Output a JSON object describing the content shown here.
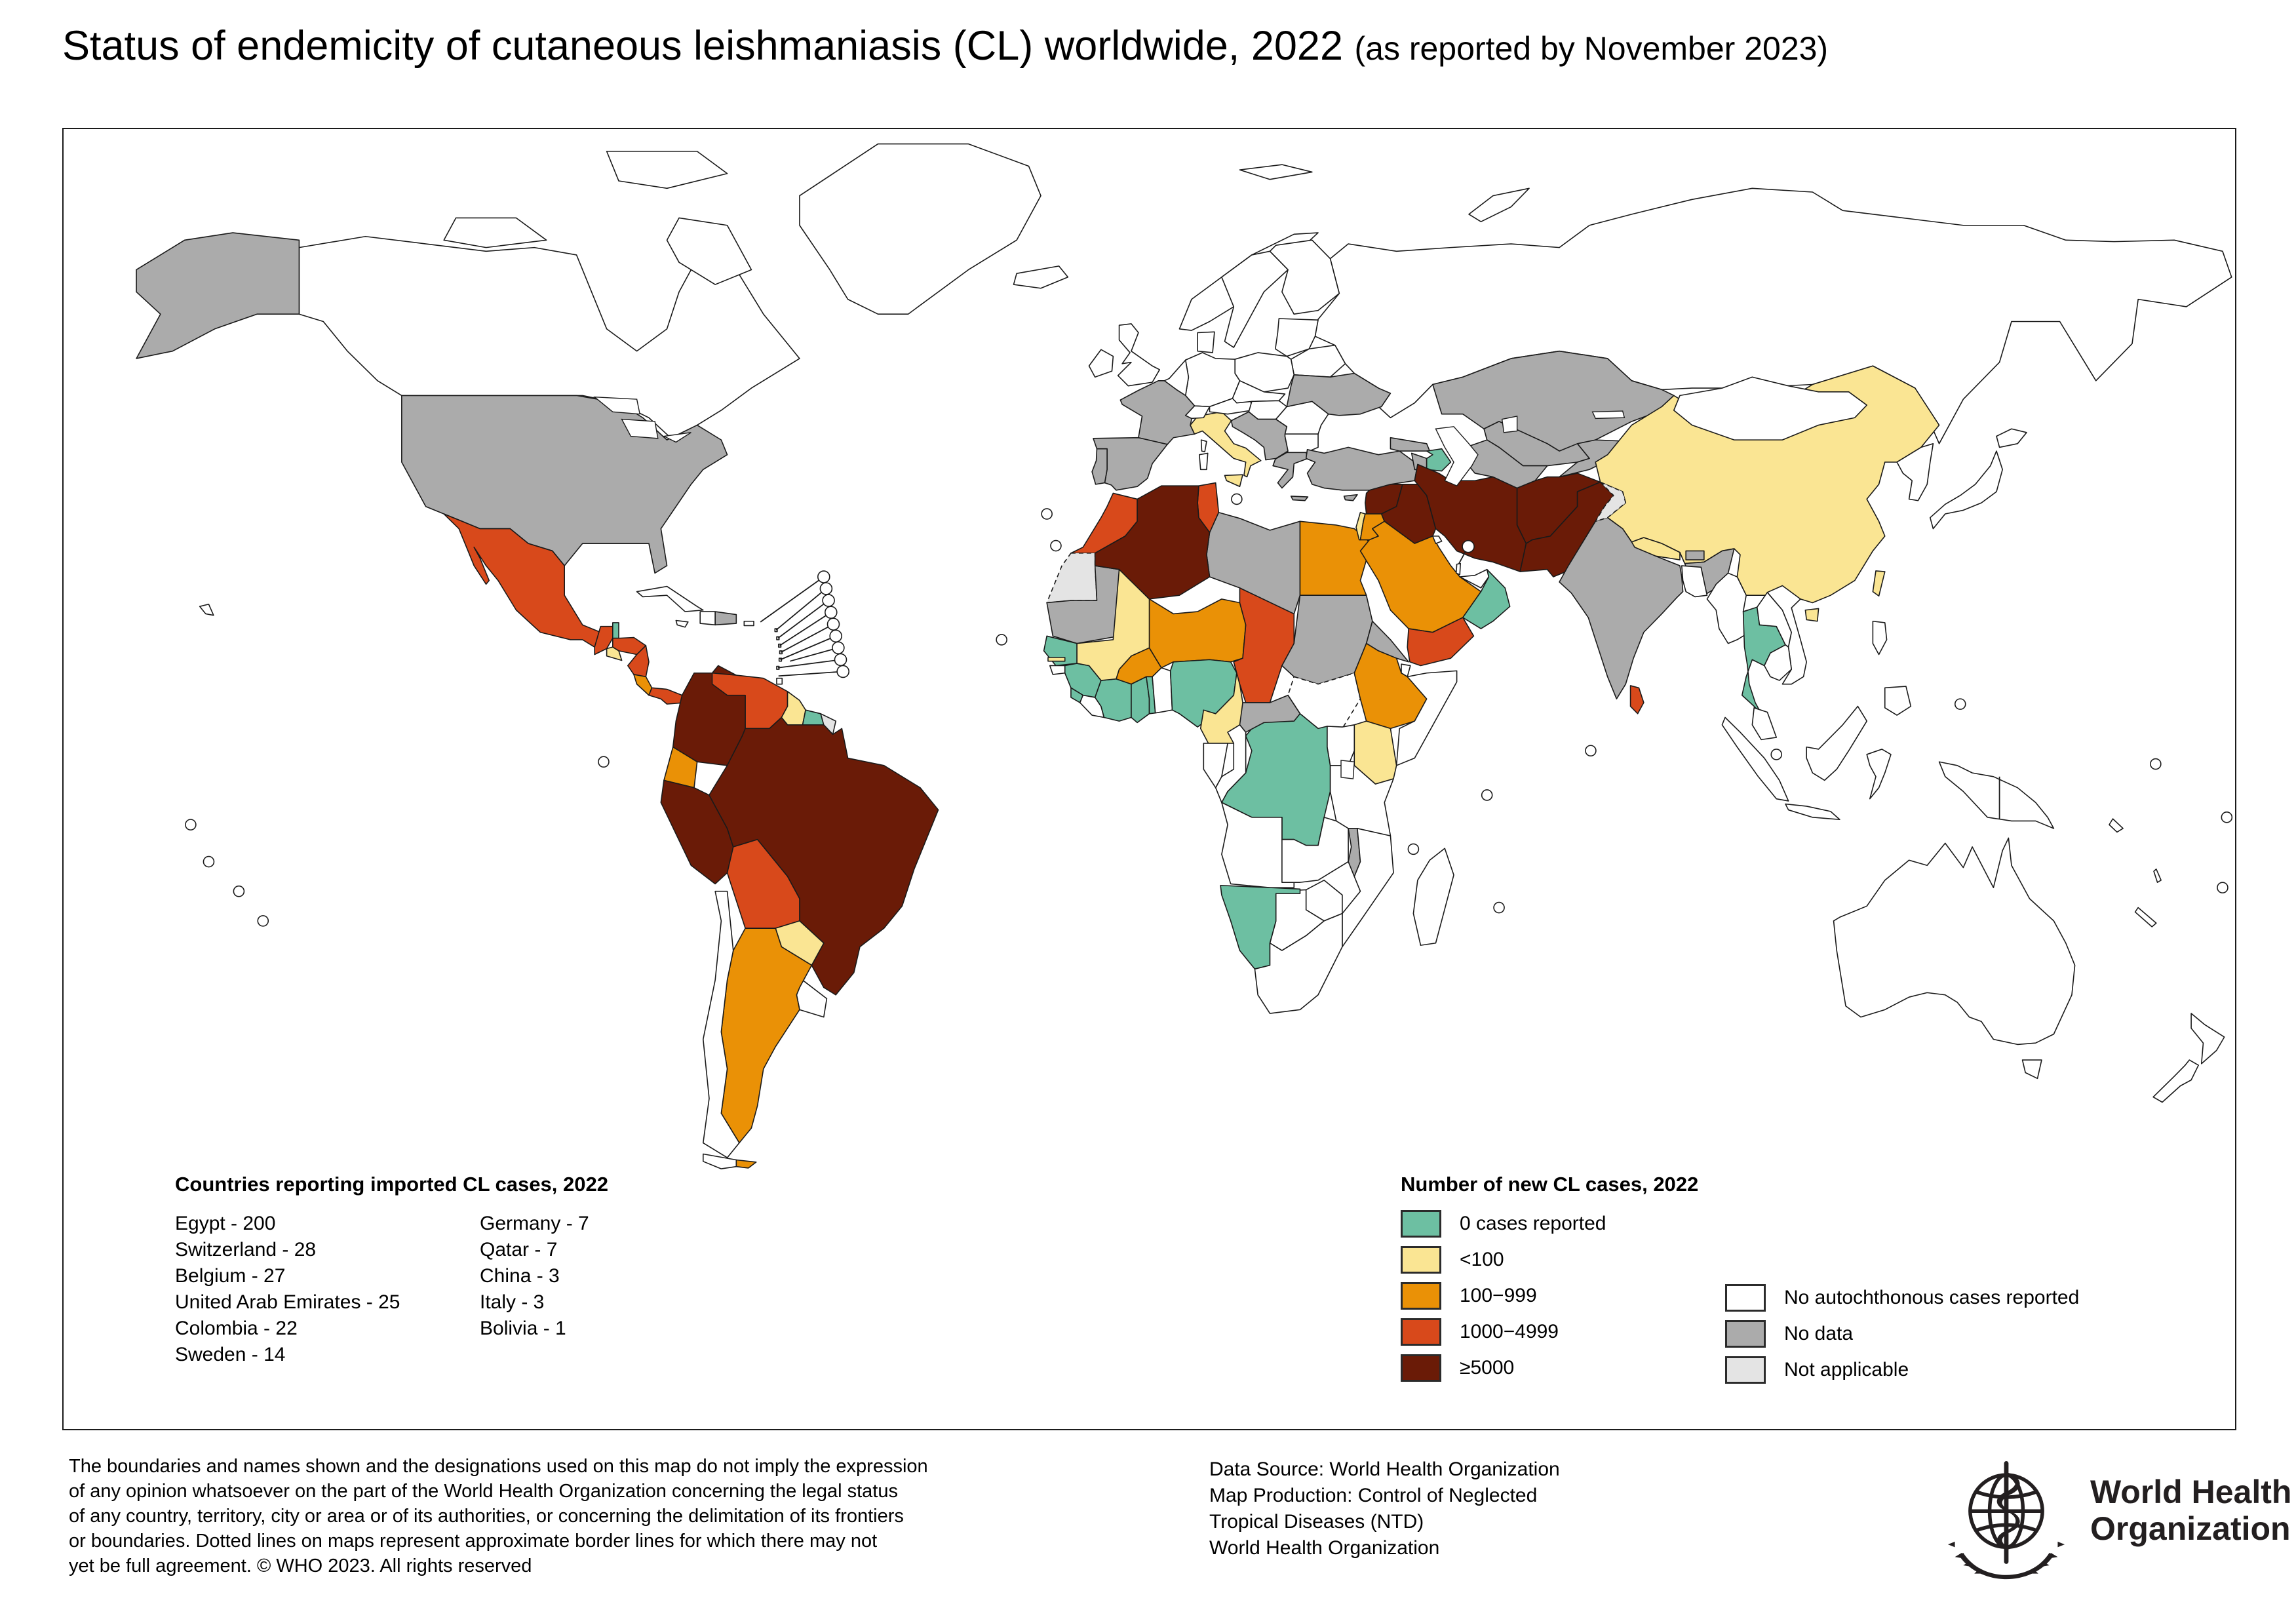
{
  "title": {
    "main": "Status of endemicity of cutaneous leishmaniasis (CL) worldwide, 2022 ",
    "note": "(as reported by November 2023)"
  },
  "imported_legend": {
    "title": "Countries reporting imported CL cases, 2022",
    "col1": [
      "Egypt - 200",
      "Switzerland - 28",
      "Belgium - 27",
      "United Arab Emirates - 25",
      "Colombia - 22",
      "Sweden - 14"
    ],
    "col2": [
      "Germany - 7",
      "Qatar - 7",
      "China - 3",
      "Italy - 3",
      "Bolivia - 1"
    ]
  },
  "cases_legend": {
    "title": "Number of new CL cases, 2022",
    "classes": [
      {
        "key": "zero",
        "label": "0 cases reported",
        "color": "#6DBFA2"
      },
      {
        "key": "lt100",
        "label": "<100",
        "color": "#FAE593"
      },
      {
        "key": "c100_999",
        "label": "100−999",
        "color": "#EA9106"
      },
      {
        "key": "c1000_4999",
        "label": "1000−4999",
        "color": "#D8491B"
      },
      {
        "key": "gte5000",
        "label": "≥5000",
        "color": "#6A1B07"
      }
    ],
    "status": [
      {
        "key": "noauto",
        "label": "No autochthonous cases reported",
        "color": "#FFFFFF"
      },
      {
        "key": "nodata",
        "label": "No data",
        "color": "#ABABAB"
      },
      {
        "key": "na",
        "label": "Not applicable",
        "color": "#E4E4E4"
      }
    ]
  },
  "footer": {
    "disclaimer_lines": [
      "The boundaries and names shown and the designations used on this map do not imply the expression",
      "of any opinion whatsoever on the part of the World Health Organization concerning the legal status",
      "of any country, territory, city or area or of its authorities, or concerning the delimitation of its frontiers",
      "or boundaries. Dotted lines on maps represent approximate border lines for which there may not",
      "yet be full agreement. © WHO 2023. All rights reserved"
    ],
    "source_lines": [
      "Data Source: World Health Organization",
      "Map Production: Control of Neglected",
      "Tropical Diseases (NTD)",
      "World Health Organization"
    ],
    "logo_line1": "World Health",
    "logo_line2": "Organization"
  },
  "map": {
    "palette": {
      "zero": "#6DBFA2",
      "lt100": "#FAE593",
      "c100_999": "#EA9106",
      "c1000_4999": "#D8491B",
      "gte5000": "#6A1B07",
      "noauto": "#FFFFFF",
      "nodata": "#ABABAB",
      "na": "#E4E4E4"
    },
    "countries": {
      "colombia": "gte5000",
      "peru": "gte5000",
      "brazil": "gte5000",
      "algeria": "gte5000",
      "syria": "gte5000",
      "iraq": "gte5000",
      "iran": "gte5000",
      "afghanistan": "gte5000",
      "pakistan": "gte5000",
      "mexico": "c1000_4999",
      "guatemala": "c1000_4999",
      "honduras": "c1000_4999",
      "nicaragua": "c1000_4999",
      "panama": "c1000_4999",
      "venezuela": "c1000_4999",
      "bolivia": "c1000_4999",
      "morocco": "c1000_4999",
      "tunisia": "c1000_4999",
      "chad": "c1000_4999",
      "yemen": "c1000_4999",
      "sri-lanka": "c1000_4999",
      "costa-rica": "c100_999",
      "ecuador": "c100_999",
      "argentina": "c100_999",
      "tdf-argentina": "c100_999",
      "egypt": "c100_999",
      "saudi-arabia": "c100_999",
      "jordan": "c100_999",
      "niger": "c100_999",
      "burkina-faso": "c100_999",
      "ethiopia": "c100_999",
      "el-salvador": "lt100",
      "guyana": "lt100",
      "paraguay": "lt100",
      "mali": "lt100",
      "gambia": "lt100",
      "cameroon": "lt100",
      "kenya": "lt100",
      "italy": "lt100",
      "israel": "lt100",
      "nepal": "lt100",
      "china": "lt100",
      "taiwan": "lt100",
      "belize": "zero",
      "suriname": "zero",
      "senegal": "zero",
      "guinea": "zero",
      "sierra-leone": "zero",
      "cote-divoire": "zero",
      "ghana": "zero",
      "togo": "zero",
      "nigeria": "zero",
      "drc": "zero",
      "namibia": "zero",
      "oman": "zero",
      "azerbaijan": "zero",
      "thailand": "zero",
      "usa": "nodata",
      "dominican-republic": "nodata",
      "france": "nodata",
      "spain": "nodata",
      "portugal": "nodata",
      "balkans": "nodata",
      "greece": "nodata",
      "crete": "nodata",
      "cyprus": "nodata",
      "ukraine": "nodata",
      "turkey": "nodata",
      "georgia": "nodata",
      "armenia": "nodata",
      "kazakhstan": "nodata",
      "uzbekistan": "nodata",
      "turkmenistan": "nodata",
      "kyrgyz-tajik": "nodata",
      "india": "nodata",
      "bhutan": "nodata",
      "libya": "nodata",
      "mauritania": "nodata",
      "sudan": "nodata",
      "car": "nodata",
      "eritrea": "nodata",
      "malawi": "nodata",
      "western-sahara": "na",
      "french-guiana": "na",
      "kashmir": "na",
      "canada": "noauto",
      "greenland": "noauto",
      "iceland": "noauto",
      "uk": "noauto",
      "ireland": "noauto",
      "norway": "noauto",
      "sweden": "noauto",
      "finland": "noauto",
      "denmark": "noauto",
      "baltics": "noauto",
      "belarus": "noauto",
      "poland": "noauto",
      "germany": "noauto",
      "benelux": "noauto",
      "switzerland": "noauto",
      "austria": "noauto",
      "czech-slovakia": "noauto",
      "hungary": "noauto",
      "romania": "noauto",
      "bulgaria": "noauto",
      "russia": "noauto",
      "mongolia": "noauto",
      "korea": "noauto",
      "japan": "noauto",
      "myanmar": "noauto",
      "laos": "noauto",
      "vietnam": "noauto",
      "cambodia": "noauto",
      "malaysia": "noauto",
      "indonesia": "noauto",
      "new-guinea": "noauto",
      "philippines": "noauto",
      "australia": "noauto",
      "new-zealand": "noauto",
      "cuba": "noauto",
      "jamaica": "noauto",
      "haiti": "noauto",
      "puerto-rico": "noauto",
      "trinidad": "noauto",
      "chile": "noauto",
      "tdf-chile": "noauto",
      "uruguay": "noauto",
      "liberia": "noauto",
      "benin": "noauto",
      "guinea-bissau": "noauto",
      "somalia": "noauto",
      "south-sudan": "noauto",
      "djibouti": "noauto",
      "uganda": "noauto",
      "tanzania": "noauto",
      "congo": "noauto",
      "gabon": "noauto",
      "angola": "noauto",
      "zambia": "noauto",
      "zimbabwe": "noauto",
      "botswana": "noauto",
      "mozambique": "noauto",
      "south-africa": "noauto",
      "madagascar": "noauto",
      "bangladesh": "noauto",
      "uae": "noauto",
      "kuwait": "noauto",
      "qatar": "noauto",
      "svalbard": "noauto",
      "novaya-zemlya": "noauto",
      "sardinia": "noauto",
      "corsica": "noauto",
      "sicily": "lt100",
      "hainan": "lt100",
      "arctic-island": "noauto",
      "pacific-island": "noauto",
      "small-state": "noauto",
      "lake": "noauto"
    }
  }
}
